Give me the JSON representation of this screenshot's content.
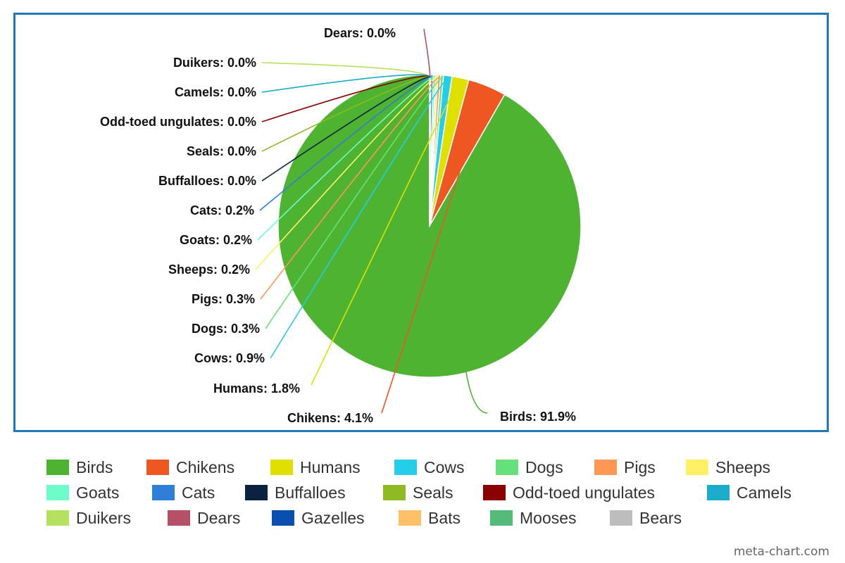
{
  "chart_data": {
    "type": "pie",
    "title": "",
    "start_angle_deg": 0,
    "direction": "clockwise-from-top",
    "slices": [
      {
        "name": "Birds",
        "value": 91.9,
        "label": "Birds: 91.9%",
        "color": "#4db331"
      },
      {
        "name": "Chikens",
        "value": 4.1,
        "label": "Chikens: 4.1%",
        "color": "#ef5722"
      },
      {
        "name": "Humans",
        "value": 1.8,
        "label": "Humans: 1.8%",
        "color": "#e0e000"
      },
      {
        "name": "Cows",
        "value": 0.9,
        "label": "Cows: 0.9%",
        "color": "#25cde8"
      },
      {
        "name": "Dogs",
        "value": 0.3,
        "label": "Dogs: 0.3%",
        "color": "#66e07a"
      },
      {
        "name": "Pigs",
        "value": 0.3,
        "label": "Pigs: 0.3%",
        "color": "#ff9755"
      },
      {
        "name": "Sheeps",
        "value": 0.2,
        "label": "Sheeps: 0.2%",
        "color": "#fff066"
      },
      {
        "name": "Goats",
        "value": 0.2,
        "label": "Goats: 0.2%",
        "color": "#6dfcca"
      },
      {
        "name": "Cats",
        "value": 0.2,
        "label": "Cats: 0.2%",
        "color": "#2f7fd8"
      },
      {
        "name": "Buffalloes",
        "value": 0.0,
        "label": "Buffalloes: 0.0%",
        "color": "#0b2340"
      },
      {
        "name": "Seals",
        "value": 0.0,
        "label": "Seals: 0.0%",
        "color": "#8fba22"
      },
      {
        "name": "Odd-toed ungulates",
        "value": 0.0,
        "label": "Odd-toed ungulates: 0.0%",
        "color": "#8b0000"
      },
      {
        "name": "Camels",
        "value": 0.0,
        "label": "Camels: 0.0%",
        "color": "#1aacc8"
      },
      {
        "name": "Duikers",
        "value": 0.0,
        "label": "Duikers: 0.0%",
        "color": "#b5e060"
      },
      {
        "name": "Dears",
        "value": 0.0,
        "label": "Dears: 0.0%",
        "color": "#b55067"
      },
      {
        "name": "Gazelles",
        "value": 0.0,
        "label": "",
        "color": "#0a4fb0"
      },
      {
        "name": "Bats",
        "value": 0.0,
        "label": "",
        "color": "#ffc066"
      },
      {
        "name": "Mooses",
        "value": 0.0,
        "label": "",
        "color": "#55bb7a"
      },
      {
        "name": "Bears",
        "value": 0.0,
        "label": "",
        "color": "#bdbdbd"
      }
    ],
    "legend": {
      "placement": "bottom",
      "entries": [
        "Birds",
        "Chikens",
        "Humans",
        "Cows",
        "Dogs",
        "Pigs",
        "Sheeps",
        "Goats",
        "Cats",
        "Buffalloes",
        "Seals",
        "Odd-toed ungulates",
        "Camels",
        "Duikers",
        "Dears",
        "Gazelles",
        "Bats",
        "Mooses",
        "Bears"
      ]
    }
  },
  "credit": "meta-chart.com"
}
